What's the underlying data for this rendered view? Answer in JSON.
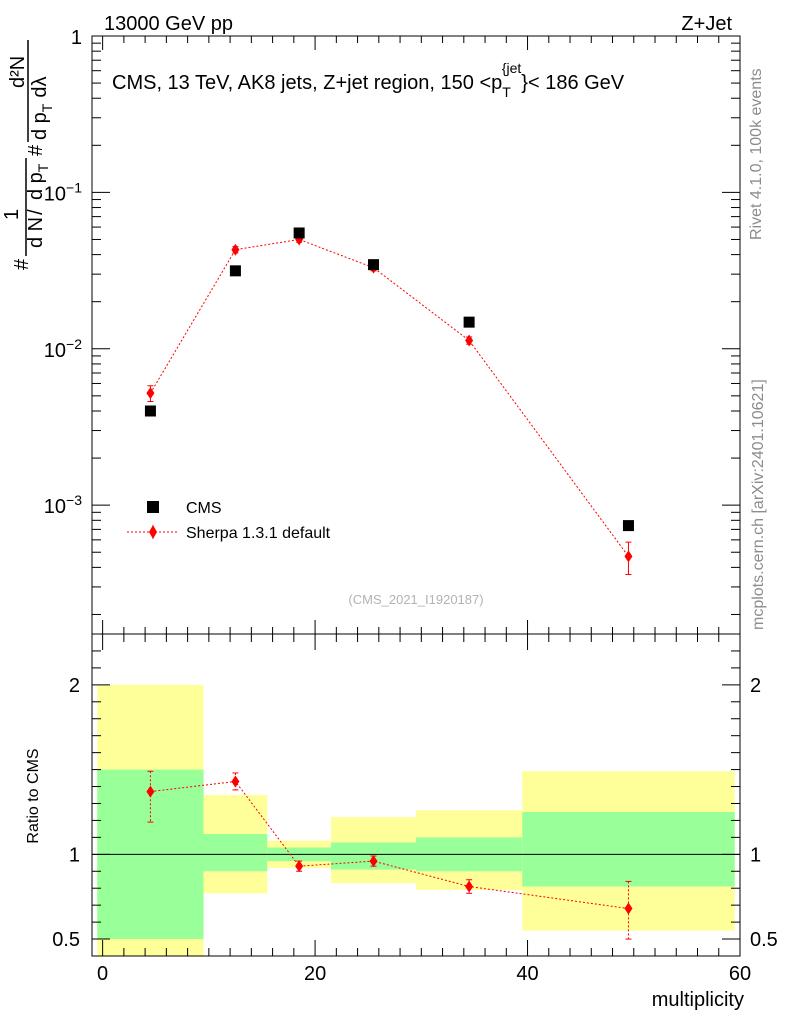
{
  "header": {
    "left": "13000 GeV pp",
    "right": "Z+Jet"
  },
  "side_labels": {
    "rivet": "Rivet 4.1.0,  100k events",
    "source": "mcplots.cern.ch [arXiv:2401.10621]"
  },
  "analysis_tag": "(CMS_2021_I1920187)",
  "colors": {
    "data": "#000000",
    "mc": "#ff0000",
    "band_inner": "#99ff99",
    "band_outer": "#ffff99"
  },
  "chart_data": [
    {
      "type": "scatter",
      "yscale": "log",
      "title": "CMS, 13 TeV, AK8 jets, Z+jet region, 150 <p_T^{jet}< 186 GeV",
      "title_parts": {
        "a": "CMS, 13 TeV, AK8 jets, Z+jet region, 150 <p",
        "sub": "T",
        "sup": "{jet",
        "b": "}< 186 GeV"
      },
      "ylabel_parts": {
        "hash1": "#",
        "one": "1",
        "hash2": "#",
        "dN": "d N",
        "slash": "/",
        "dp": "d p",
        "T": "T",
        "d2N": "d²N",
        "dpTdl": "d p",
        "T2": "T",
        "dl": "dλ"
      },
      "xlim": [
        -1,
        60
      ],
      "ylim": [
        0.00015,
        1
      ],
      "yticks": [
        {
          "v": 1,
          "label": "1"
        },
        {
          "v": 0.1,
          "label": "10",
          "exp": "−1"
        },
        {
          "v": 0.01,
          "label": "10",
          "exp": "−2"
        },
        {
          "v": 0.001,
          "label": "10",
          "exp": "−3"
        }
      ],
      "series": [
        {
          "name": "CMS",
          "x": [
            4.5,
            12.5,
            18.5,
            25.5,
            34.5,
            49.5
          ],
          "y": [
            0.004,
            0.0315,
            0.055,
            0.0345,
            0.0148,
            0.00074
          ]
        },
        {
          "name": "Sherpa 1.3.1 default",
          "x": [
            4.5,
            12.5,
            18.5,
            25.5,
            34.5,
            49.5
          ],
          "y": [
            0.0052,
            0.043,
            0.05,
            0.033,
            0.0113,
            0.00047
          ],
          "yerr": [
            0.0006,
            0.002,
            0.002,
            0.0015,
            0.0006,
            0.00011
          ]
        }
      ],
      "legend": {
        "position": "bottom-left",
        "entries": [
          "CMS",
          "Sherpa 1.3.1 default"
        ]
      }
    },
    {
      "type": "ratio",
      "ylabel": "Ratio to CMS",
      "xlabel": "multiplicity",
      "xlim": [
        -1,
        60
      ],
      "ylim": [
        0.4,
        2.3
      ],
      "yticks": [
        {
          "v": 2,
          "label": "2"
        },
        {
          "v": 1,
          "label": "1"
        },
        {
          "v": 0.5,
          "label": "0.5"
        }
      ],
      "xticks": [
        {
          "v": 0,
          "label": "0"
        },
        {
          "v": 20,
          "label": "20"
        },
        {
          "v": 40,
          "label": "40"
        },
        {
          "v": 60,
          "label": "60"
        }
      ],
      "bins": [
        {
          "lo": -0.5,
          "hi": 9.5,
          "inner": [
            0.5,
            1.5
          ],
          "outer": [
            0.38,
            2.0
          ]
        },
        {
          "lo": 9.5,
          "hi": 15.5,
          "inner": [
            0.9,
            1.12
          ],
          "outer": [
            0.77,
            1.35
          ]
        },
        {
          "lo": 15.5,
          "hi": 21.5,
          "inner": [
            0.96,
            1.04
          ],
          "outer": [
            0.92,
            1.08
          ]
        },
        {
          "lo": 21.5,
          "hi": 29.5,
          "inner": [
            0.91,
            1.07
          ],
          "outer": [
            0.83,
            1.22
          ]
        },
        {
          "lo": 29.5,
          "hi": 39.5,
          "inner": [
            0.9,
            1.1
          ],
          "outer": [
            0.79,
            1.26
          ]
        },
        {
          "lo": 39.5,
          "hi": 59.5,
          "inner": [
            0.81,
            1.25
          ],
          "outer": [
            0.55,
            1.49
          ]
        }
      ],
      "series": [
        {
          "name": "Sherpa 1.3.1 default",
          "x": [
            4.5,
            12.5,
            18.5,
            25.5,
            34.5,
            49.5
          ],
          "y": [
            1.37,
            1.43,
            0.93,
            0.96,
            0.81,
            0.68
          ],
          "yerr_lo": [
            0.18,
            0.05,
            0.03,
            0.03,
            0.04,
            0.18
          ],
          "yerr_hi": [
            0.12,
            0.05,
            0.03,
            0.03,
            0.04,
            0.16
          ]
        }
      ]
    }
  ]
}
